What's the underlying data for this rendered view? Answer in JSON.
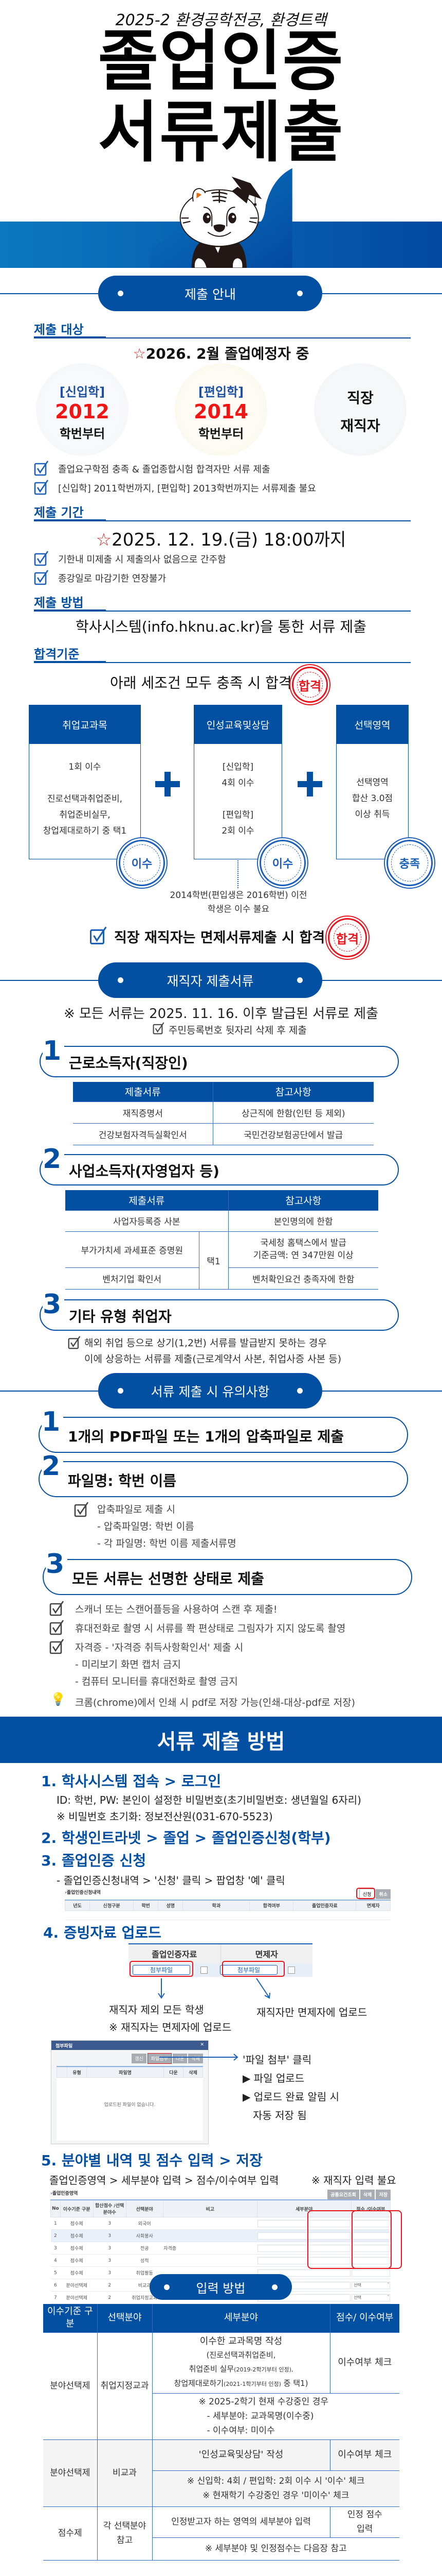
{
  "colors": {
    "primary": "#0350a2",
    "accent_red": "#e8141b"
  },
  "hero": {
    "subtitle": "2025-2 환경공학전공, 환경트랙",
    "title_line1": "졸업인증",
    "title_line2": "서류제출"
  },
  "pills": {
    "guide": "제출 안내",
    "employed_docs": "재직자 제출서류",
    "cautions": "서류 제출 시 유의사항",
    "input_method": "입력 방법"
  },
  "target": {
    "heading": "제출 대상",
    "lead": "2026. 2월 졸업예정자 중",
    "cards": [
      {
        "tag": "[신입학]",
        "year": "2012",
        "suffix": "학번부터"
      },
      {
        "tag": "[편입학]",
        "year": "2014",
        "suffix": "학번부터"
      },
      {
        "line1": "직장",
        "line2": "재직자"
      }
    ],
    "notes": [
      "졸업요구학점 충족 & 졸업종합시험 합격자만 서류 제출",
      "[신입학] 2011학번까지, [편입학] 2013학번까지는 서류제출 불요"
    ]
  },
  "period": {
    "heading": "제출 기간",
    "deadline": "2025. 12. 19.(금) 18:00까지",
    "notes": [
      "기한내 미제출 시 제출의사 없음으로 간주함",
      "종강일로 마감기한 연장불가"
    ]
  },
  "method": {
    "heading": "제출 방법",
    "text": "학사시스템(info.hknu.ac.kr)을 통한 서류 제출"
  },
  "criteria": {
    "heading": "합격기준",
    "lead": "아래 세조건 모두 충족 시 합격",
    "pass_stamp": "합격",
    "boxes": [
      {
        "title": "취업교과목",
        "lines": [
          "1회 이수",
          "",
          "진로선택과취업준비,",
          "취업준비실무,",
          "창업제대로하기 중 택1"
        ],
        "seal": "이수"
      },
      {
        "title": "인성교육및상담",
        "lines": [
          "[신입학]",
          "4회 이수",
          "",
          "[편입학]",
          "2회 이수"
        ],
        "seal": "이수"
      },
      {
        "title": "선택영역",
        "lines": [
          "선택영역",
          "합산 3.0점",
          "이상 취득"
        ],
        "seal": "충족"
      }
    ],
    "exempt_note": [
      "2014학번(편입생은 2016학번) 이전",
      "학생은 이수 불요"
    ],
    "employed_pass": "직장 재직자는 면제서류제출 시 합격"
  },
  "employed_docs": {
    "notice": "※ 모든 서류는 2025. 11. 16. 이후 발급된 서류로 제출",
    "id_note": "주민등록번호 뒷자리 삭제 후 제출",
    "headers": [
      "제출서류",
      "참고사항"
    ],
    "groups": [
      {
        "num": "1",
        "title": "근로소득자(직장인)",
        "rows": [
          [
            "재직증명서",
            "상근직에 한함(인턴 등 제외)"
          ],
          [
            "건강보험자격득실확인서",
            "국민건강보험공단에서 발급"
          ]
        ]
      },
      {
        "num": "2",
        "title": "사업소득자(자영업자 등)",
        "rows": [
          [
            "사업자등록증 사본",
            "본인명의에 한함"
          ],
          [
            "부가가치세 과세표준 증명원",
            "국세청 홈택스에서 발급",
            "기준금액: 연 347만원 이상"
          ],
          [
            "벤처기업 확인서",
            "벤처확인요건 충족자에 한함"
          ]
        ],
        "choice": "택1"
      },
      {
        "num": "3",
        "title": "기타 유형 취업자",
        "note": [
          "해외 취업 등으로 상기(1,2번) 서류를 발급받지 못하는 경우",
          "이에 상응하는 서류를 제출(근로계약서 사본, 취업사증 사본 등)"
        ]
      }
    ]
  },
  "cautions": {
    "items": [
      {
        "num": "1",
        "text": "1개의 PDF파일 또는 1개의 압축파일로 제출"
      },
      {
        "num": "2",
        "text": "파일명: 학번 이름",
        "sub": [
          "압축파일로 제출 시",
          "- 압축파일명: 학번 이름",
          "- 각 파일명: 학번 이름 제출서류명"
        ]
      },
      {
        "num": "3",
        "text": "모든 서류는 선명한 상태로 제출"
      }
    ],
    "checks": [
      "스캐너 또는 스캔어플등을 사용하여 스캔 후 제출!",
      "휴대전화로 촬영 시 서류를 쫙 편상태로 그림자가 지지 않도록 촬영",
      "자격증 - '자격증 취득사항확인서' 제출 시"
    ],
    "check_sub": [
      "- 미리보기 화면 캡처 금지",
      "- 컴퓨터 모니터를 휴대전화로 촬영 금지"
    ],
    "tip": "크롬(chrome)에서 인쇄 시 pdf로 저장 가능(인쇄-대상-pdf로 저장)"
  },
  "howto": {
    "banner": "서류 제출 방법",
    "step1": {
      "title": "1. 학사시스템 접속 > 로그인",
      "lines": [
        "ID: 학번, PW: 본인이 설정한 비밀번호(초기비밀번호: 생년월일 6자리)",
        "※ 비밀번호 초기화: 정보전산원(031-670-5523)"
      ]
    },
    "step2": {
      "title": "2. 학생인트라넷 > 졸업 > 졸업인증신청(학부)"
    },
    "step3": {
      "title": "3. 졸업인증 신청",
      "line": "- 졸업인증신청내역 > '신청' 클릭 > 팝업창 '예' 클릭",
      "shot": {
        "title": "졸업인증신청내역",
        "buttons": [
          "신청",
          "취소"
        ],
        "headers": [
          "년도",
          "신청구분",
          "학번",
          "성명",
          "학과",
          "합격여부",
          "졸업인증자료",
          "면제자"
        ]
      }
    },
    "step4": {
      "title": "4. 증빙자료 업로드",
      "shot": {
        "headers": [
          "졸업인증자료",
          "면제자"
        ],
        "button": "첨부파일"
      },
      "left_note": [
        "재직자 제외 모든 학생",
        "※ 재직자는 면제자에 업로드"
      ],
      "right_note": "재직자만 면제자에 업로드",
      "popup": {
        "title": "첨부파일",
        "buttons": [
          "갱신",
          "파일첨부",
          "다운",
          "삭제"
        ],
        "headers": [
          "유형",
          "파일명",
          "다운",
          "삭제"
        ],
        "empty": "업로드된 파일이 없습니다."
      },
      "popup_notes": [
        "'파일 첨부' 클릭",
        "▶ 파일 업로드",
        "▶ 업로드 완료 알림 시",
        "자동 저장 됨"
      ]
    },
    "step5": {
      "title": "5. 분야별 내역 및 점수 입력 > 저장",
      "line": "졸업인증영역 > 세부분야 입력 > 점수/이수여부 입력",
      "note": "※ 재직자 입력 불요",
      "shot": {
        "title": "졸업인증영역",
        "buttons": [
          "공통요건조회",
          "삭제",
          "저장"
        ],
        "headers": [
          "No",
          "이수기준 구분",
          "합산점수 /선택분야수",
          "선택분야",
          "비고",
          "세부분야",
          "점수 /이수여부"
        ],
        "rows": [
          [
            "1",
            "점수제",
            "3",
            "외국어",
            ""
          ],
          [
            "2",
            "점수제",
            "3",
            "사회봉사",
            ""
          ],
          [
            "3",
            "점수제",
            "3",
            "전공",
            "자격증"
          ],
          [
            "4",
            "점수제",
            "3",
            "성적",
            ""
          ],
          [
            "5",
            "점수제",
            "3",
            "취업활동",
            ""
          ],
          [
            "6",
            "분야선택제",
            "2",
            "비교과",
            "인성교육및상담"
          ],
          [
            "7",
            "분야선택제",
            "2",
            "취업지정교과",
            ""
          ]
        ],
        "select_label": "선택"
      }
    }
  },
  "input_table": {
    "headers": [
      "이수기준 구분",
      "선택분야",
      "세부분야",
      "점수/ 이수여부"
    ],
    "r1": {
      "type": "분야선택제",
      "field": "취업지정교과",
      "detail": [
        "이수한 교과목명 작성",
        "(진로선택과취업준비,",
        "취업준비 실무",
        "(2019-2학기부터 인정),",
        "창업제대로하기",
        "(2021-1학기부터 인정)",
        " 중 택1)"
      ],
      "score": "이수여부 체크",
      "note": [
        "※ 2025-2학기 현재 수강중인 경우",
        "- 세부분야: 교과목명(이수중)",
        "- 이수여부: 미이수"
      ]
    },
    "r2": {
      "type": "분야선택제",
      "field": "비교과",
      "detail": "'인성교육및상담' 작성",
      "score": "이수여부 체크",
      "note": [
        "※ 신입학: 4회 / 편입학: 2회  이수 시 '이수' 체크",
        "※ 현재학기 수강중인 경우 '미이수' 체크"
      ]
    },
    "r3": {
      "type": "점수제",
      "field": [
        "각 선택분야",
        "참고"
      ],
      "detail": "인정받고자 하는 영역의 세부분야 입력",
      "score": [
        "인정 점수",
        "입력"
      ],
      "note": "※ 세부분야 및 인정점수는 다음장 참고"
    }
  }
}
